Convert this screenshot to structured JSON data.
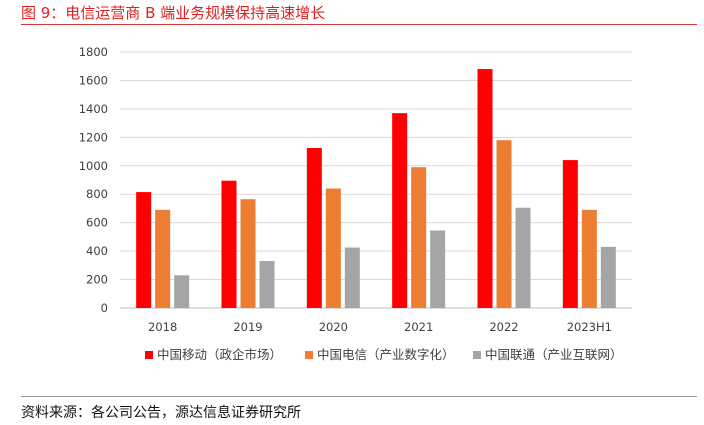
{
  "figure": {
    "title": "图 9：电信运营商 B 端业务规模保持高速增长",
    "source": "资料来源：各公司公告，源达信息证券研究所"
  },
  "colors": {
    "title": "#e02020",
    "grid": "#d9d9d9",
    "axis_text": "#404040"
  },
  "chart_data": {
    "type": "bar",
    "title": "",
    "xlabel": "",
    "ylabel": "",
    "categories": [
      "2018",
      "2019",
      "2020",
      "2021",
      "2022",
      "2023H1"
    ],
    "ylim": [
      0,
      1800
    ],
    "yticks": [
      0,
      200,
      400,
      600,
      800,
      1000,
      1200,
      1400,
      1600,
      1800
    ],
    "grid": true,
    "legend_position": "bottom",
    "series": [
      {
        "name": "中国移动（政企市场）",
        "color": "#ff0000",
        "values": [
          815,
          895,
          1125,
          1370,
          1680,
          1040
        ]
      },
      {
        "name": "中国电信（产业数字化）",
        "color": "#ed7d31",
        "values": [
          690,
          765,
          840,
          990,
          1180,
          690
        ]
      },
      {
        "name": "中国联通（产业互联网）",
        "color": "#a5a5a5",
        "values": [
          230,
          330,
          425,
          545,
          705,
          430
        ]
      }
    ]
  }
}
